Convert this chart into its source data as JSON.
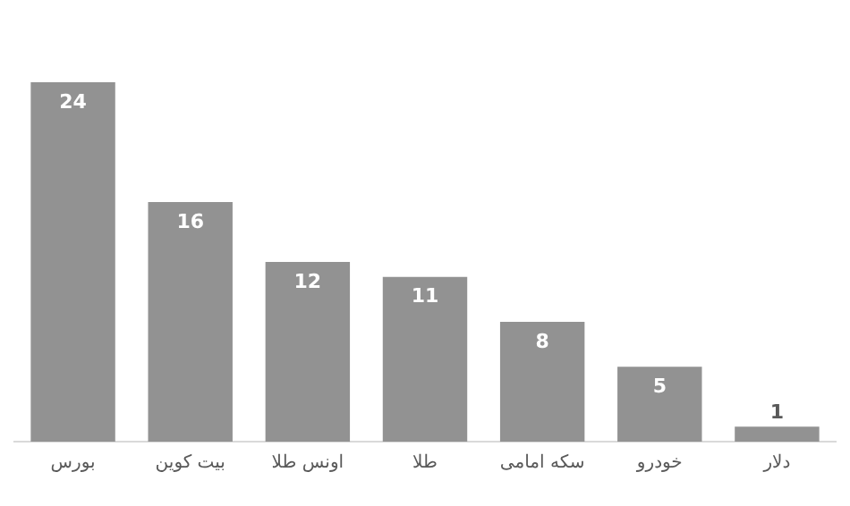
{
  "chart_data": {
    "type": "bar",
    "categories": [
      "بورس",
      "بیت کوین",
      "اونس طلا",
      "طلا",
      "سکه امامی",
      "خودرو",
      "دلار"
    ],
    "values": [
      24,
      16,
      12,
      11,
      8,
      5,
      1
    ],
    "color": "#929292",
    "data_labels": true,
    "grid": false,
    "legend": false
  }
}
